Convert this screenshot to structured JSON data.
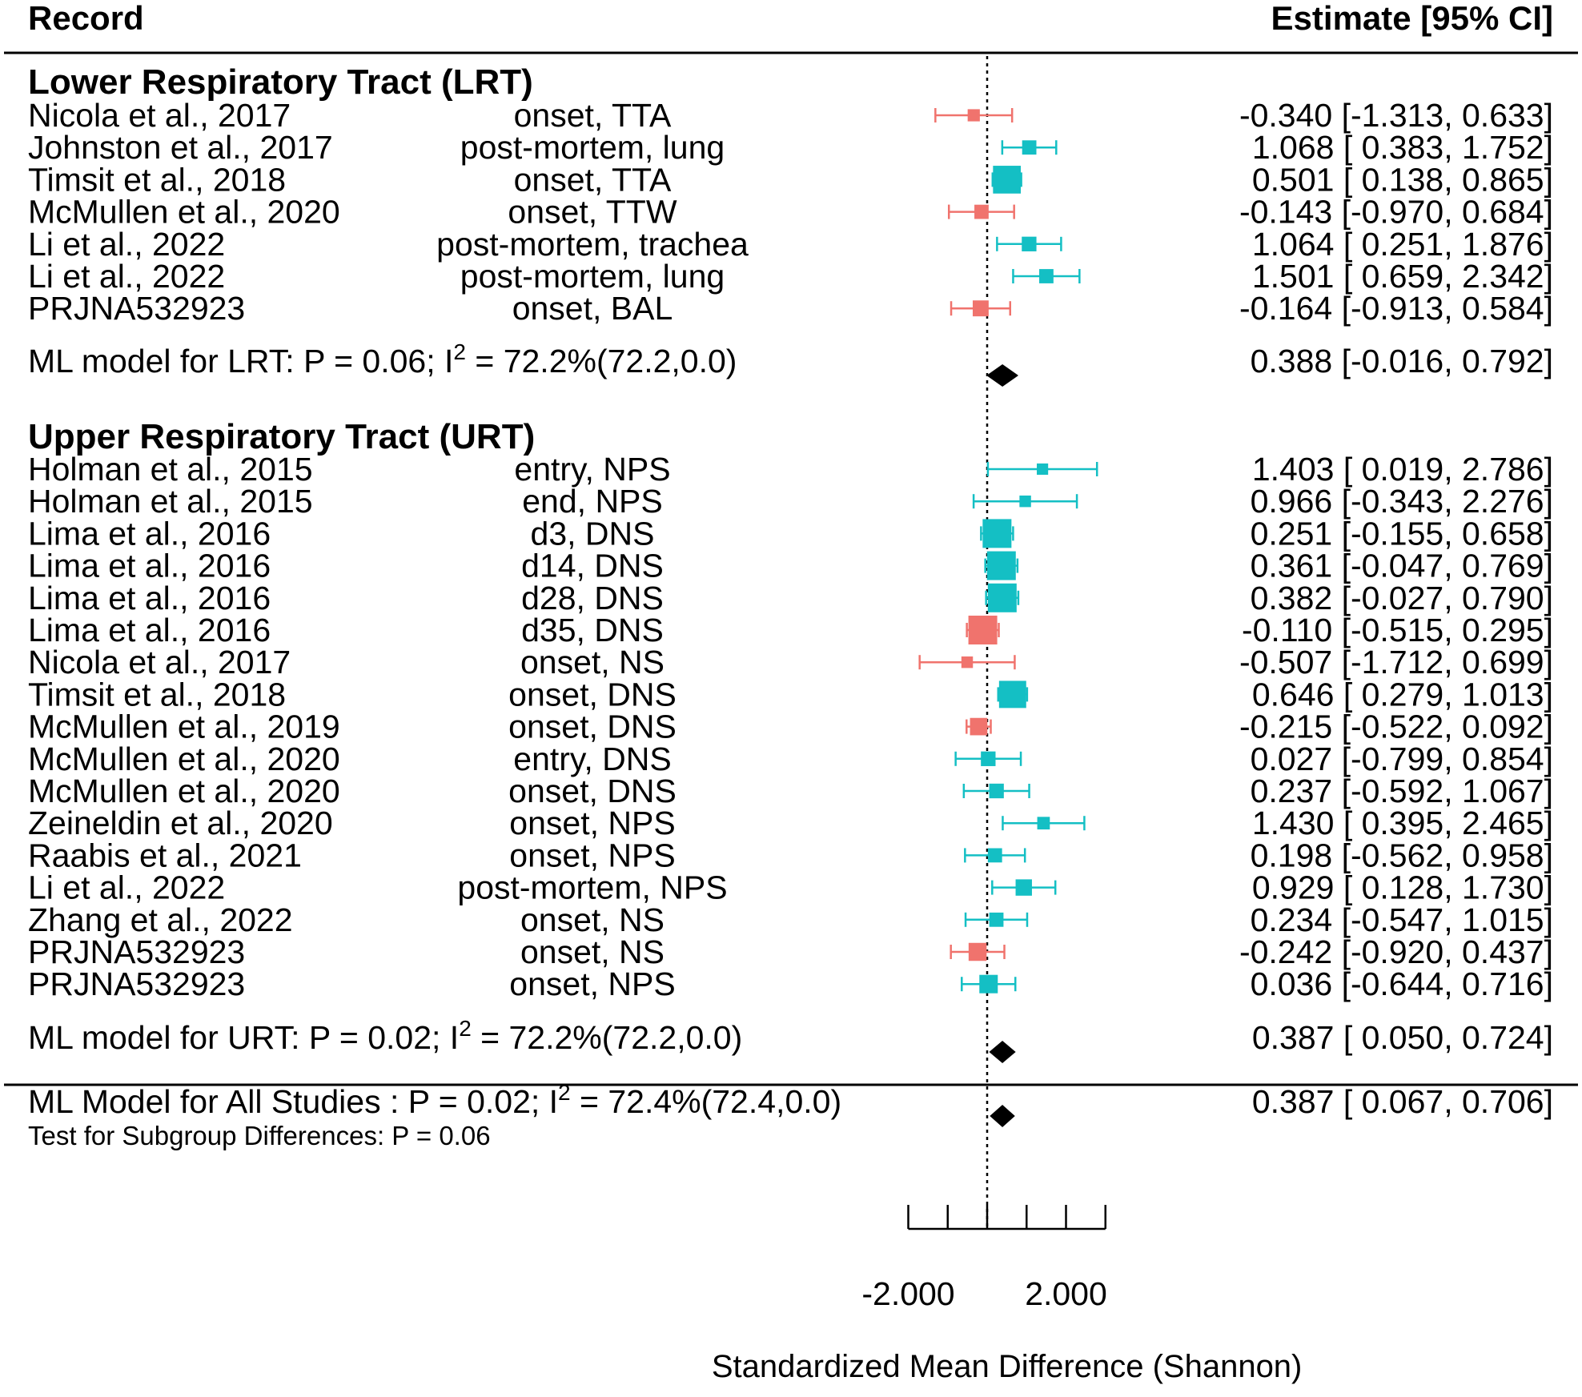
{
  "chart_data": {
    "type": "forest",
    "header": {
      "left": "Record",
      "right": "Estimate [95% CI]"
    },
    "colors": {
      "positive": "#14BFC4",
      "negative": "#F0736D",
      "summary": "#000000",
      "line": "#000000"
    },
    "xlim": [
      -2.0,
      3.0
    ],
    "reference_line": 0,
    "x_ticks": [
      -2.0,
      -1.0,
      0.0,
      1.0,
      2.0,
      3.0
    ],
    "x_tick_labels": [
      {
        "value": -2.0,
        "label": "-2.000"
      },
      {
        "value": 2.0,
        "label": "2.000"
      }
    ],
    "xlabel": "Standardized Mean Difference (Shannon)",
    "groups": [
      {
        "title": "Lower Respiratory Tract (LRT)",
        "studies": [
          {
            "study": "Nicola et al., 2017",
            "sample": "onset, TTA",
            "estimate": -0.34,
            "lower": -1.313,
            "upper": 0.633,
            "ci_text": "-0.340 [-1.313, 0.633]",
            "weight": 0.2
          },
          {
            "study": "Johnston et al., 2017",
            "sample": "post-mortem, lung",
            "estimate": 1.068,
            "lower": 0.383,
            "upper": 1.752,
            "ci_text": "1.068 [ 0.383, 1.752]",
            "weight": 0.3
          },
          {
            "study": "Timsit et al., 2018",
            "sample": "onset, TTA",
            "estimate": 0.501,
            "lower": 0.138,
            "upper": 0.865,
            "ci_text": "0.501 [ 0.138, 0.865]",
            "weight": 0.95
          },
          {
            "study": "McMullen et al., 2020",
            "sample": "onset, TTW",
            "estimate": -0.143,
            "lower": -0.97,
            "upper": 0.684,
            "ci_text": "-0.143 [-0.970, 0.684]",
            "weight": 0.3
          },
          {
            "study": "Li et al., 2022",
            "sample": "post-mortem, trachea",
            "estimate": 1.064,
            "lower": 0.251,
            "upper": 1.876,
            "ci_text": "1.064 [ 0.251, 1.876]",
            "weight": 0.32
          },
          {
            "study": "Li et al., 2022",
            "sample": "post-mortem, lung",
            "estimate": 1.501,
            "lower": 0.659,
            "upper": 2.342,
            "ci_text": "1.501 [ 0.659, 2.342]",
            "weight": 0.3
          },
          {
            "study": "PRJNA532923",
            "sample": "onset, BAL",
            "estimate": -0.164,
            "lower": -0.913,
            "upper": 0.584,
            "ci_text": "-0.164 [-0.913, 0.584]",
            "weight": 0.38
          }
        ],
        "summary": {
          "label_main": "ML model for LRT: P = 0.06; I",
          "label_sup": "2",
          "label_end": " = 72.2%(72.2,0.0)",
          "estimate": 0.388,
          "lower": -0.016,
          "upper": 0.792,
          "ci_text": "0.388 [-0.016, 0.792]"
        }
      },
      {
        "title": "Upper Respiratory Tract (URT)",
        "studies": [
          {
            "study": "Holman et al., 2015",
            "sample": "entry, NPS",
            "estimate": 1.403,
            "lower": 0.019,
            "upper": 2.786,
            "ci_text": "1.403 [ 0.019, 2.786]",
            "weight": 0.16
          },
          {
            "study": "Holman et al., 2015",
            "sample": "end, NPS",
            "estimate": 0.966,
            "lower": -0.343,
            "upper": 2.276,
            "ci_text": "0.966 [-0.343, 2.276]",
            "weight": 0.17
          },
          {
            "study": "Lima et al., 2016",
            "sample": "d3, DNS",
            "estimate": 0.251,
            "lower": -0.155,
            "upper": 0.658,
            "ci_text": "0.251 [-0.155, 0.658]",
            "weight": 1.0
          },
          {
            "study": "Lima et al., 2016",
            "sample": "d14, DNS",
            "estimate": 0.361,
            "lower": -0.047,
            "upper": 0.769,
            "ci_text": "0.361 [-0.047, 0.769]",
            "weight": 1.0
          },
          {
            "study": "Lima et al., 2016",
            "sample": "d28, DNS",
            "estimate": 0.382,
            "lower": -0.027,
            "upper": 0.79,
            "ci_text": "0.382 [-0.027, 0.790]",
            "weight": 1.0
          },
          {
            "study": "Lima et al., 2016",
            "sample": "d35, DNS",
            "estimate": -0.11,
            "lower": -0.515,
            "upper": 0.295,
            "ci_text": "-0.110 [-0.515, 0.295]",
            "weight": 1.0
          },
          {
            "study": "Nicola et al., 2017",
            "sample": "onset, NS",
            "estimate": -0.507,
            "lower": -1.712,
            "upper": 0.699,
            "ci_text": "-0.507 [-1.712, 0.699]",
            "weight": 0.17
          },
          {
            "study": "Timsit et al., 2018",
            "sample": "onset, DNS",
            "estimate": 0.646,
            "lower": 0.279,
            "upper": 1.013,
            "ci_text": "0.646 [ 0.279, 1.013]",
            "weight": 0.92
          },
          {
            "study": "McMullen et al., 2019",
            "sample": "onset, DNS",
            "estimate": -0.215,
            "lower": -0.522,
            "upper": 0.092,
            "ci_text": "-0.215 [-0.522, 0.092]",
            "weight": 0.45
          },
          {
            "study": "McMullen et al., 2020",
            "sample": "entry, DNS",
            "estimate": 0.027,
            "lower": -0.799,
            "upper": 0.854,
            "ci_text": "0.027 [-0.799, 0.854]",
            "weight": 0.32
          },
          {
            "study": "McMullen et al., 2020",
            "sample": "onset, DNS",
            "estimate": 0.237,
            "lower": -0.592,
            "upper": 1.067,
            "ci_text": "0.237 [-0.592, 1.067]",
            "weight": 0.32
          },
          {
            "study": "Zeineldin et al., 2020",
            "sample": "onset, NPS",
            "estimate": 1.43,
            "lower": 0.395,
            "upper": 2.465,
            "ci_text": "1.430 [ 0.395, 2.465]",
            "weight": 0.22
          },
          {
            "study": "Raabis et al., 2021",
            "sample": "onset, NPS",
            "estimate": 0.198,
            "lower": -0.562,
            "upper": 0.958,
            "ci_text": "0.198 [-0.562, 0.958]",
            "weight": 0.3
          },
          {
            "study": "Li et al., 2022",
            "sample": "post-mortem, NPS",
            "estimate": 0.929,
            "lower": 0.128,
            "upper": 1.73,
            "ci_text": "0.929 [ 0.128, 1.730]",
            "weight": 0.4
          },
          {
            "study": "Zhang et al., 2022",
            "sample": "onset, NS",
            "estimate": 0.234,
            "lower": -0.547,
            "upper": 1.015,
            "ci_text": "0.234 [-0.547, 1.015]",
            "weight": 0.3
          },
          {
            "study": "PRJNA532923",
            "sample": "onset, NS",
            "estimate": -0.242,
            "lower": -0.92,
            "upper": 0.437,
            "ci_text": "-0.242 [-0.920, 0.437]",
            "weight": 0.48
          },
          {
            "study": "PRJNA532923",
            "sample": "onset, NPS",
            "estimate": 0.036,
            "lower": -0.644,
            "upper": 0.716,
            "ci_text": "0.036 [-0.644, 0.716]",
            "weight": 0.5
          }
        ],
        "summary": {
          "label_main": "ML model for URT: P = 0.02; I",
          "label_sup": "2",
          "label_end": " = 72.2%(72.2,0.0)",
          "estimate": 0.387,
          "lower": 0.05,
          "upper": 0.724,
          "ci_text": "0.387 [ 0.050, 0.724]"
        }
      }
    ],
    "overall": {
      "label_main": "ML Model for All Studies   : P = 0.02; I",
      "label_sup": "2",
      "label_end": " = 72.4%(72.4,0.0)",
      "estimate": 0.387,
      "lower": 0.067,
      "upper": 0.706,
      "ci_text": "0.387 [ 0.067, 0.706]",
      "subgroup_test": "Test for Subgroup Differences: P = 0.06"
    }
  }
}
